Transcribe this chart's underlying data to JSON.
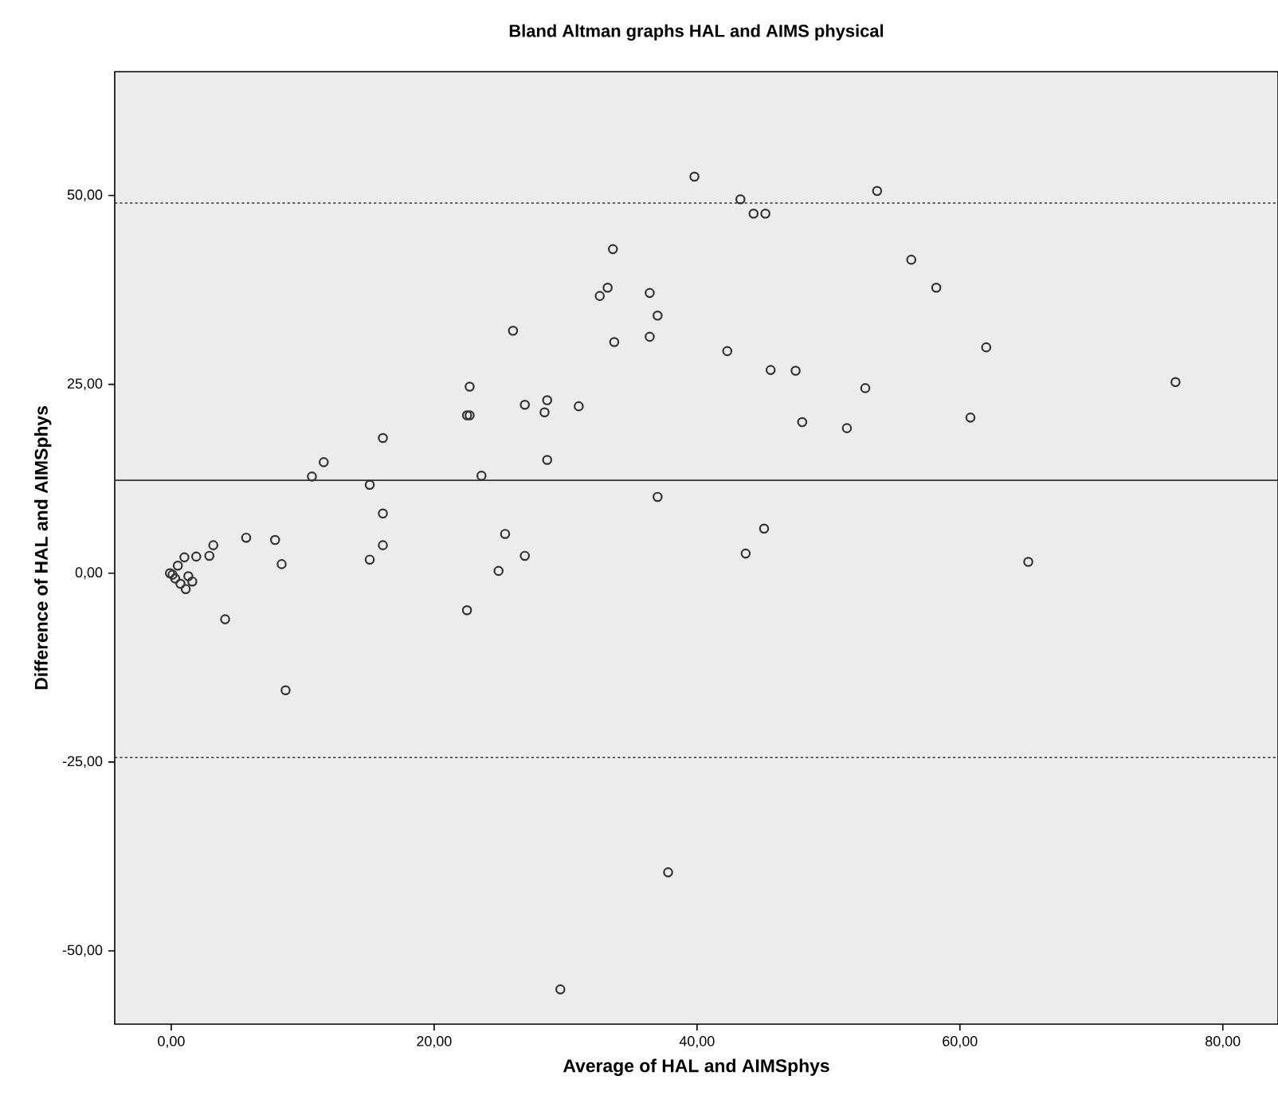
{
  "chart_data": {
    "type": "scatter",
    "title": "Bland Altman graphs HAL and AIMS physical",
    "xlabel": "Average of HAL and AIMSphys",
    "ylabel": "Difference of HAL and AIMSphys",
    "xlim": [
      -4.3,
      84.2
    ],
    "ylim": [
      -59.7,
      66.4
    ],
    "xticks": [
      {
        "value": 0,
        "label": "0,00"
      },
      {
        "value": 20,
        "label": "20,00"
      },
      {
        "value": 40,
        "label": "40,00"
      },
      {
        "value": 60,
        "label": "60,00"
      },
      {
        "value": 80,
        "label": "80,00"
      }
    ],
    "yticks": [
      {
        "value": -50,
        "label": "-50,00"
      },
      {
        "value": -25,
        "label": "-25,00"
      },
      {
        "value": 0,
        "label": "0,00"
      },
      {
        "value": 25,
        "label": "25,00"
      },
      {
        "value": 50,
        "label": "50,00"
      }
    ],
    "marker": "circle",
    "grid": false,
    "ref_lines": [
      {
        "axis": "y",
        "value": 49.0,
        "color": "#333333",
        "line_style": "dotted"
      },
      {
        "axis": "y",
        "value": 12.3,
        "color": "#333333",
        "line_style": "solid"
      },
      {
        "axis": "y",
        "value": -24.4,
        "color": "#333333",
        "line_style": "dotted"
      }
    ],
    "series": [
      {
        "color": "#333333",
        "x": [
          -0.1,
          0.1,
          0.3,
          0.5,
          0.7,
          1.0,
          1.1,
          1.3,
          1.6,
          1.9,
          2.9,
          3.2,
          4.1,
          5.7,
          7.9,
          8.4,
          8.7,
          10.7,
          11.6,
          15.1,
          15.1,
          16.1,
          16.1,
          16.1,
          22.5,
          22.5,
          22.7,
          22.7,
          23.6,
          24.9,
          25.4,
          26.0,
          26.9,
          26.9,
          28.4,
          28.6,
          28.6,
          29.6,
          31.0,
          32.6,
          33.2,
          33.6,
          33.7,
          36.4,
          36.4,
          37.0,
          37.0,
          37.8,
          39.8,
          42.3,
          43.3,
          43.7,
          44.3,
          45.1,
          45.2,
          45.6,
          47.5,
          48.0,
          51.4,
          52.8,
          53.7,
          56.3,
          58.2,
          60.8,
          62.0,
          65.2,
          76.4
        ],
        "values": [
          0.0,
          -0.2,
          -0.7,
          1.0,
          -1.4,
          2.1,
          -2.1,
          -0.4,
          -1.1,
          2.2,
          2.3,
          3.7,
          -6.1,
          4.7,
          4.4,
          1.2,
          -15.5,
          12.8,
          14.7,
          1.8,
          11.7,
          3.7,
          7.9,
          17.9,
          -4.9,
          20.9,
          20.9,
          24.7,
          12.9,
          0.3,
          5.2,
          32.1,
          2.3,
          22.3,
          21.3,
          22.9,
          15.0,
          -55.1,
          22.1,
          36.7,
          37.8,
          42.9,
          30.6,
          37.1,
          31.3,
          34.1,
          10.1,
          -39.6,
          52.5,
          29.4,
          49.5,
          2.6,
          47.6,
          5.9,
          47.6,
          26.9,
          26.8,
          20.0,
          19.2,
          24.5,
          50.6,
          41.5,
          37.8,
          20.6,
          29.9,
          1.5,
          25.3
        ]
      }
    ]
  }
}
